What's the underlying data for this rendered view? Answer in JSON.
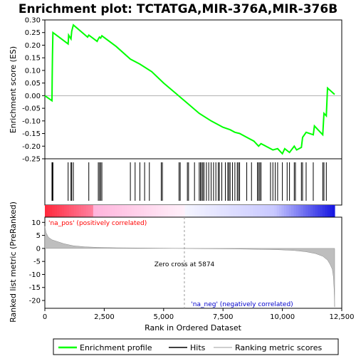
{
  "chart_data": {
    "type": "line",
    "title": "Enrichment plot: TCTATGA,MIR-376A,MIR-376B",
    "ylabel_top": "Enrichment score (ES)",
    "ylabel_bottom": "Ranked list metric (PreRanked)",
    "xlabel": "Rank in Ordered Dataset",
    "xlim": [
      0,
      12500
    ],
    "x_ticks": [
      0,
      2500,
      5000,
      7500,
      10000,
      12500
    ],
    "x_tick_labels": [
      "0",
      "2,500",
      "5,000",
      "7,500",
      "10,000",
      "12,500"
    ],
    "es_ylim": [
      -0.25,
      0.3
    ],
    "es_ticks": [
      -0.25,
      -0.2,
      -0.15,
      -0.1,
      -0.05,
      0.0,
      0.05,
      0.1,
      0.15,
      0.2,
      0.25,
      0.3
    ],
    "es_tick_labels": [
      "-0.25",
      "-0.20",
      "-0.15",
      "-0.10",
      "-0.05",
      "0.00",
      "0.05",
      "0.10",
      "0.15",
      "0.20",
      "0.25",
      "0.30"
    ],
    "metric_ylim": [
      -23,
      12
    ],
    "metric_ticks": [
      -20,
      -15,
      -10,
      -5,
      0,
      5,
      10
    ],
    "metric_tick_labels": [
      "-20",
      "-15",
      "-10",
      "-5",
      "0",
      "5",
      "10"
    ],
    "series": [
      {
        "name": "Enrichment profile",
        "color": "#00ff00",
        "x": [
          0,
          300,
          310,
          320,
          340,
          980,
          1000,
          1100,
          1130,
          1200,
          1800,
          1850,
          2200,
          2250,
          2300,
          2350,
          2400,
          3000,
          3600,
          4000,
          4500,
          5000,
          5500,
          6000,
          6500,
          7000,
          7500,
          7800,
          8000,
          8200,
          8500,
          8800,
          9000,
          9100,
          9500,
          9600,
          9800,
          10000,
          10100,
          10300,
          10500,
          10600,
          10800,
          10850,
          11000,
          11300,
          11350,
          11700,
          11750,
          11850,
          11900,
          12200
        ],
        "y": [
          0.0,
          -0.02,
          0.07,
          0.16,
          0.25,
          0.205,
          0.24,
          0.225,
          0.255,
          0.28,
          0.232,
          0.24,
          0.215,
          0.225,
          0.232,
          0.228,
          0.237,
          0.195,
          0.145,
          0.125,
          0.095,
          0.05,
          0.01,
          -0.03,
          -0.07,
          -0.1,
          -0.125,
          -0.135,
          -0.145,
          -0.15,
          -0.165,
          -0.18,
          -0.2,
          -0.19,
          -0.21,
          -0.215,
          -0.21,
          -0.23,
          -0.21,
          -0.225,
          -0.2,
          -0.215,
          -0.205,
          -0.165,
          -0.145,
          -0.155,
          -0.12,
          -0.155,
          -0.07,
          -0.08,
          0.03,
          0.005
        ]
      }
    ],
    "hits_x": [
      300,
      320,
      340,
      980,
      1100,
      1130,
      1200,
      1850,
      2250,
      2300,
      2350,
      2400,
      3600,
      3800,
      4000,
      4200,
      4400,
      4900,
      4950,
      5650,
      5700,
      6000,
      6050,
      6300,
      6500,
      6550,
      6600,
      6650,
      6700,
      6800,
      6900,
      7000,
      7100,
      7200,
      7300,
      7350,
      7450,
      7600,
      7700,
      7750,
      7800,
      7900,
      8000,
      8100,
      8150,
      8200,
      8500,
      8700,
      8950,
      9000,
      9050,
      9100,
      9500,
      9600,
      9700,
      9800,
      10000,
      10200,
      10300,
      10500,
      10550,
      10800,
      10850,
      11000,
      11300,
      11700,
      11750,
      11850
    ],
    "metric_profile": {
      "x": [
        0,
        50,
        150,
        300,
        500,
        800,
        1200,
        1700,
        2200,
        3000,
        4000,
        5000,
        5874,
        7000,
        8000,
        9000,
        9800,
        10500,
        11000,
        11400,
        11700,
        11900,
        12000,
        12100,
        12150,
        12180,
        12200
      ],
      "y": [
        8.5,
        6.0,
        4.3,
        3.3,
        2.7,
        1.8,
        1.0,
        0.6,
        0.4,
        0.25,
        0.15,
        0.08,
        0.0,
        -0.1,
        -0.2,
        -0.35,
        -0.5,
        -0.8,
        -1.3,
        -2.0,
        -3.0,
        -4.5,
        -6.0,
        -8.0,
        -11.0,
        -16.0,
        -22.5
      ]
    },
    "zero_cross": 5874,
    "annotations": {
      "pos_label": "'na_pos' (positively correlated)",
      "neg_label": "'na_neg' (negatively correlated)",
      "zero_cross_label": "Zero cross at 5874"
    },
    "legend": {
      "placement": "bottom",
      "items": [
        {
          "label": "Enrichment profile",
          "color": "#00ff00"
        },
        {
          "label": "Hits",
          "color": "#000000"
        },
        {
          "label": "Ranking metric scores",
          "color": "#bebebe"
        }
      ]
    },
    "colors": {
      "pos_annotation": "#ff0000",
      "neg_annotation": "#0000cc",
      "metric_fill": "#bebebe",
      "zero_cross_line": "#999999"
    }
  }
}
